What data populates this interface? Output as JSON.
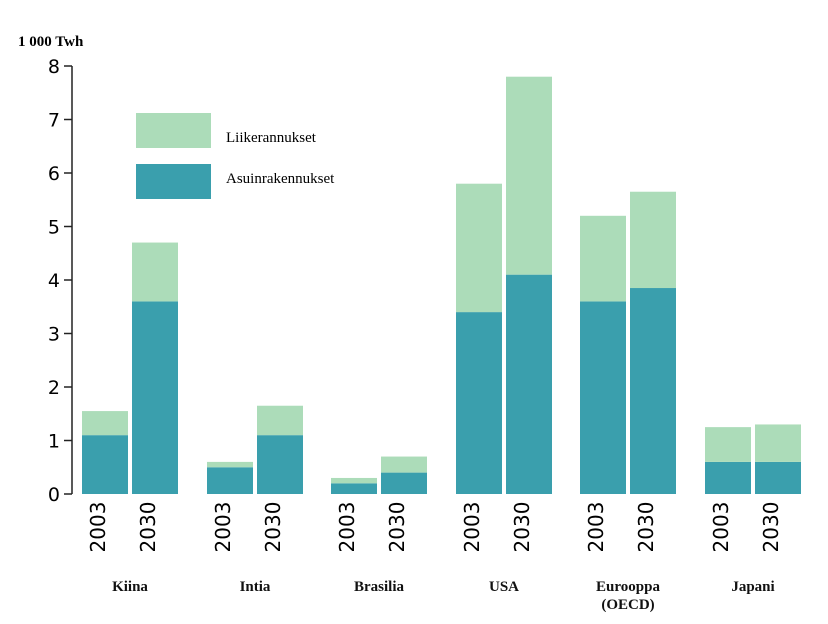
{
  "chart_data": {
    "type": "bar",
    "stacked": true,
    "ylabel": "1 000 Twh",
    "groups": [
      {
        "name": "Kiina",
        "categories": [
          "2003",
          "2030"
        ]
      },
      {
        "name": "Intia",
        "categories": [
          "2003",
          "2030"
        ]
      },
      {
        "name": "Brasilia",
        "categories": [
          "2003",
          "2030"
        ]
      },
      {
        "name": "USA",
        "categories": [
          "2003",
          "2030"
        ]
      },
      {
        "name": "Eurooppa (OECD)",
        "categories": [
          "2003",
          "2030"
        ]
      },
      {
        "name": "Japani",
        "categories": [
          "2003",
          "2030"
        ]
      }
    ],
    "series": [
      {
        "name": "Asuinrakennukset",
        "color": "#3a9fad",
        "values": [
          1.1,
          3.6,
          0.5,
          1.1,
          0.2,
          0.4,
          3.4,
          4.1,
          3.6,
          3.85,
          0.6,
          0.6
        ]
      },
      {
        "name": "Liikerannukset",
        "color": "#acdcb9",
        "values": [
          0.45,
          1.1,
          0.1,
          0.55,
          0.1,
          0.3,
          2.4,
          3.7,
          1.6,
          1.8,
          0.65,
          0.7
        ]
      }
    ],
    "ylim": [
      0,
      8
    ],
    "yticks": [
      0,
      1,
      2,
      3,
      4,
      5,
      6,
      7,
      8
    ],
    "legend": "upper-left"
  }
}
